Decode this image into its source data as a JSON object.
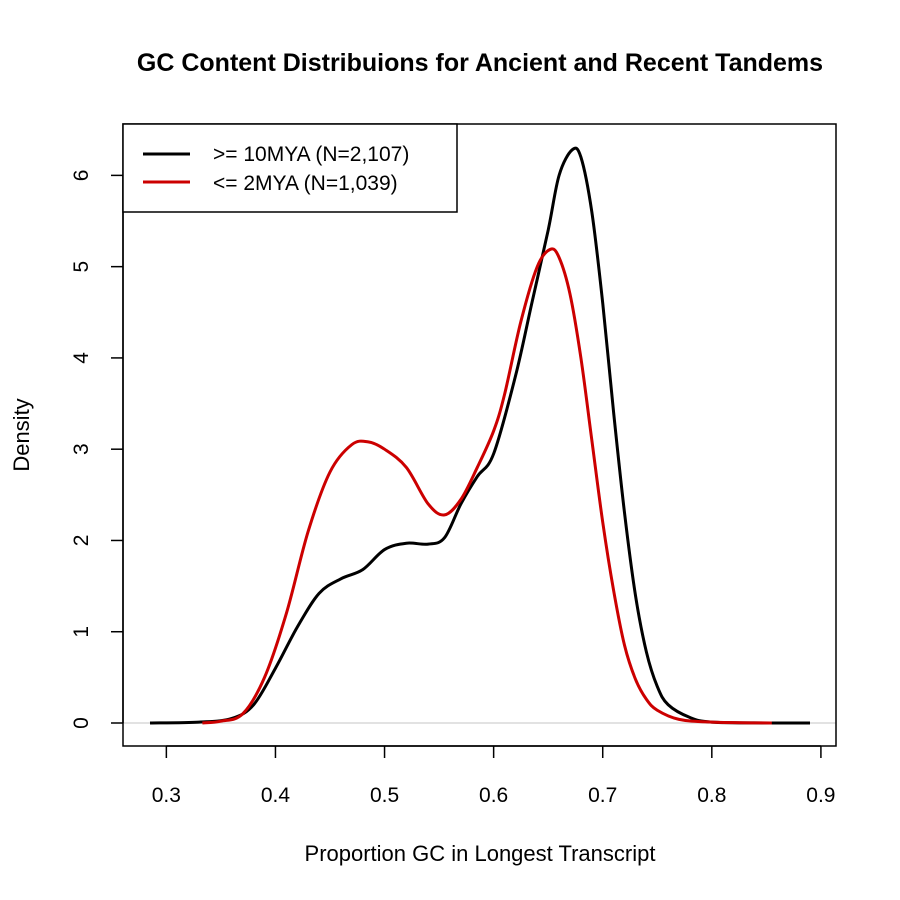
{
  "chart_data": {
    "type": "line",
    "title": "GC Content Distribuions for Ancient and Recent Tandems",
    "xlabel": "Proportion GC in Longest Transcript",
    "ylabel": "Density",
    "xlim": [
      0.285,
      0.89
    ],
    "ylim": [
      0,
      6.3
    ],
    "xticks": [
      "0.3",
      "0.4",
      "0.5",
      "0.6",
      "0.7",
      "0.8",
      "0.9"
    ],
    "yticks": [
      "0",
      "1",
      "2",
      "3",
      "4",
      "5",
      "6"
    ],
    "legend_position": "top-left",
    "baseline": 0,
    "series": [
      {
        "name": ">= 10MYA (N=2,107)",
        "color": "#000000",
        "points": [
          [
            0.285,
            0.0
          ],
          [
            0.33,
            0.01
          ],
          [
            0.36,
            0.05
          ],
          [
            0.38,
            0.2
          ],
          [
            0.4,
            0.6
          ],
          [
            0.42,
            1.05
          ],
          [
            0.44,
            1.42
          ],
          [
            0.46,
            1.58
          ],
          [
            0.48,
            1.68
          ],
          [
            0.5,
            1.9
          ],
          [
            0.52,
            1.97
          ],
          [
            0.54,
            1.96
          ],
          [
            0.555,
            2.03
          ],
          [
            0.57,
            2.4
          ],
          [
            0.585,
            2.7
          ],
          [
            0.6,
            2.95
          ],
          [
            0.62,
            3.8
          ],
          [
            0.635,
            4.6
          ],
          [
            0.65,
            5.4
          ],
          [
            0.66,
            6.0
          ],
          [
            0.672,
            6.28
          ],
          [
            0.68,
            6.2
          ],
          [
            0.69,
            5.6
          ],
          [
            0.7,
            4.6
          ],
          [
            0.71,
            3.4
          ],
          [
            0.72,
            2.3
          ],
          [
            0.73,
            1.4
          ],
          [
            0.74,
            0.78
          ],
          [
            0.75,
            0.4
          ],
          [
            0.76,
            0.2
          ],
          [
            0.78,
            0.06
          ],
          [
            0.8,
            0.01
          ],
          [
            0.85,
            0.0
          ],
          [
            0.89,
            0.0
          ]
        ]
      },
      {
        "name": "<= 2MYA (N=1,039)",
        "color": "#cc0000",
        "points": [
          [
            0.333,
            0.0
          ],
          [
            0.35,
            0.02
          ],
          [
            0.37,
            0.1
          ],
          [
            0.39,
            0.5
          ],
          [
            0.41,
            1.2
          ],
          [
            0.43,
            2.1
          ],
          [
            0.45,
            2.75
          ],
          [
            0.47,
            3.05
          ],
          [
            0.485,
            3.08
          ],
          [
            0.5,
            3.0
          ],
          [
            0.52,
            2.8
          ],
          [
            0.54,
            2.4
          ],
          [
            0.555,
            2.28
          ],
          [
            0.57,
            2.45
          ],
          [
            0.585,
            2.8
          ],
          [
            0.6,
            3.2
          ],
          [
            0.61,
            3.6
          ],
          [
            0.625,
            4.4
          ],
          [
            0.64,
            5.0
          ],
          [
            0.652,
            5.19
          ],
          [
            0.66,
            5.1
          ],
          [
            0.67,
            4.7
          ],
          [
            0.68,
            4.0
          ],
          [
            0.69,
            3.1
          ],
          [
            0.7,
            2.2
          ],
          [
            0.71,
            1.45
          ],
          [
            0.72,
            0.85
          ],
          [
            0.73,
            0.48
          ],
          [
            0.74,
            0.26
          ],
          [
            0.75,
            0.14
          ],
          [
            0.77,
            0.04
          ],
          [
            0.8,
            0.01
          ],
          [
            0.855,
            0.0
          ]
        ]
      }
    ]
  }
}
